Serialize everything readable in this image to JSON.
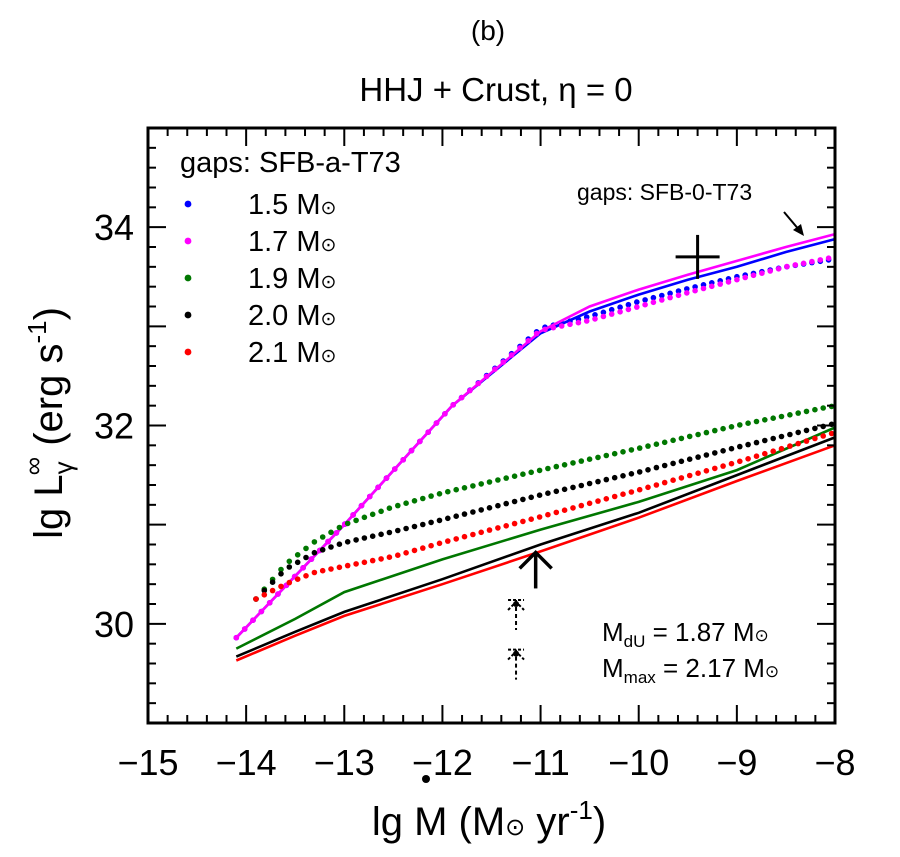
{
  "panel_label": "(b)",
  "chart_data": {
    "type": "line",
    "title": "HHJ + Crust, η = 0",
    "xlabel": {
      "main": "lg M",
      "unit_prefix": " (M",
      "sun": "⊙",
      "unit_mid": " yr",
      "sup": "-1",
      "close": ")"
    },
    "ylabel": {
      "main": "lg L",
      "sub": "γ",
      "sup_inf": "∞",
      "unit_prefix": " (erg s",
      "sup": "-1",
      "close": ")"
    },
    "xlim": [
      -15,
      -8
    ],
    "ylim": [
      29,
      35
    ],
    "xticks": [
      -15,
      -14,
      -13,
      -12,
      -11,
      -10,
      -9,
      -8
    ],
    "xtick_labels": [
      "−15",
      "−14",
      "−13",
      "−12",
      "−11",
      "−10",
      "−9",
      "−8"
    ],
    "yticks": [
      30,
      32,
      34
    ],
    "ytick_labels": [
      "30",
      "32",
      "34"
    ],
    "legend_title": "gaps: SFB-a-T73",
    "legend_placement": "top-left",
    "line_annotation": "gaps: SFB-0-T73",
    "mass_text": {
      "mdu_label": "M",
      "mdu_sub": "dU",
      "mdu_value": " = 1.87 M",
      "mmax_label": "M",
      "mmax_sub": "max",
      "mmax_value": " = 2.17 M",
      "sun": "⊙"
    },
    "series": [
      {
        "name": "1.5 M",
        "name_sun": "⊙",
        "color": "#0000ff",
        "dotted": [
          [
            -14.1,
            29.86
          ],
          [
            -13.0,
            31.0
          ],
          [
            -11.9,
            32.2
          ],
          [
            -11.0,
            32.98
          ],
          [
            -10.5,
            33.1
          ],
          [
            -10.0,
            33.25
          ],
          [
            -9.5,
            33.38
          ],
          [
            -9.0,
            33.5
          ],
          [
            -8.5,
            33.6
          ],
          [
            -8.0,
            33.68
          ]
        ],
        "solid": [
          [
            -14.1,
            29.86
          ],
          [
            -13.0,
            31.0
          ],
          [
            -11.9,
            32.2
          ],
          [
            -11.0,
            32.93
          ],
          [
            -10.5,
            33.15
          ],
          [
            -10.0,
            33.32
          ],
          [
            -9.5,
            33.47
          ],
          [
            -9.0,
            33.6
          ],
          [
            -8.5,
            33.75
          ],
          [
            -8.0,
            33.88
          ]
        ]
      },
      {
        "name": "1.7 M",
        "name_sun": "⊙",
        "color": "#ff00ff",
        "dotted": [
          [
            -14.1,
            29.86
          ],
          [
            -13.0,
            31.0
          ],
          [
            -11.9,
            32.2
          ],
          [
            -11.0,
            32.96
          ],
          [
            -10.5,
            33.06
          ],
          [
            -10.0,
            33.2
          ],
          [
            -9.5,
            33.34
          ],
          [
            -9.0,
            33.47
          ],
          [
            -8.5,
            33.6
          ],
          [
            -8.0,
            33.7
          ]
        ],
        "solid": [
          [
            -14.1,
            29.86
          ],
          [
            -13.0,
            31.0
          ],
          [
            -11.9,
            32.2
          ],
          [
            -11.0,
            32.95
          ],
          [
            -10.5,
            33.2
          ],
          [
            -10.0,
            33.37
          ],
          [
            -9.5,
            33.52
          ],
          [
            -9.0,
            33.66
          ],
          [
            -8.5,
            33.8
          ],
          [
            -8.0,
            33.93
          ]
        ]
      },
      {
        "name": "1.9 M",
        "name_sun": "⊙",
        "color": "#007700",
        "dotted": [
          [
            -13.9,
            30.25
          ],
          [
            -13.6,
            30.6
          ],
          [
            -13.3,
            30.83
          ],
          [
            -13.0,
            31.0
          ],
          [
            -12.5,
            31.18
          ],
          [
            -12.0,
            31.32
          ],
          [
            -11.0,
            31.55
          ],
          [
            -10.0,
            31.77
          ],
          [
            -9.0,
            32.0
          ],
          [
            -8.0,
            32.2
          ]
        ],
        "solid": [
          [
            -14.1,
            29.75
          ],
          [
            -13.5,
            30.05
          ],
          [
            -13.0,
            30.32
          ],
          [
            -12.0,
            30.65
          ],
          [
            -11.0,
            30.95
          ],
          [
            -10.0,
            31.23
          ],
          [
            -9.0,
            31.55
          ],
          [
            -8.0,
            31.98
          ]
        ]
      },
      {
        "name": "2.0 M",
        "name_sun": "⊙",
        "color": "#000000",
        "dotted": [
          [
            -13.9,
            30.25
          ],
          [
            -13.6,
            30.55
          ],
          [
            -13.3,
            30.72
          ],
          [
            -13.0,
            30.82
          ],
          [
            -12.5,
            30.93
          ],
          [
            -12.0,
            31.05
          ],
          [
            -11.0,
            31.3
          ],
          [
            -10.0,
            31.53
          ],
          [
            -9.0,
            31.78
          ],
          [
            -8.0,
            32.02
          ]
        ],
        "solid": [
          [
            -14.1,
            29.67
          ],
          [
            -13.5,
            29.92
          ],
          [
            -13.0,
            30.12
          ],
          [
            -12.0,
            30.45
          ],
          [
            -11.0,
            30.8
          ],
          [
            -10.0,
            31.12
          ],
          [
            -9.0,
            31.5
          ],
          [
            -8.0,
            31.88
          ]
        ]
      },
      {
        "name": "2.1 M",
        "name_sun": "⊙",
        "color": "#ff0000",
        "dotted": [
          [
            -13.9,
            30.25
          ],
          [
            -13.6,
            30.4
          ],
          [
            -13.3,
            30.52
          ],
          [
            -13.0,
            30.58
          ],
          [
            -12.5,
            30.68
          ],
          [
            -12.0,
            30.82
          ],
          [
            -11.0,
            31.08
          ],
          [
            -10.0,
            31.35
          ],
          [
            -9.0,
            31.63
          ],
          [
            -8.0,
            31.93
          ]
        ],
        "solid": [
          [
            -14.1,
            29.63
          ],
          [
            -13.5,
            29.88
          ],
          [
            -13.0,
            30.08
          ],
          [
            -12.0,
            30.4
          ],
          [
            -11.0,
            30.73
          ],
          [
            -10.0,
            31.07
          ],
          [
            -9.0,
            31.44
          ],
          [
            -8.0,
            31.8
          ]
        ]
      }
    ],
    "markers": {
      "cross": {
        "x": -9.4,
        "y": 33.7
      },
      "arrow": {
        "x": -11.05,
        "y_top": 30.72
      },
      "dashed_upper": {
        "x": -11.25,
        "y": 30.2
      },
      "dashed_lower": {
        "x": -11.25,
        "y": 29.7
      }
    }
  }
}
